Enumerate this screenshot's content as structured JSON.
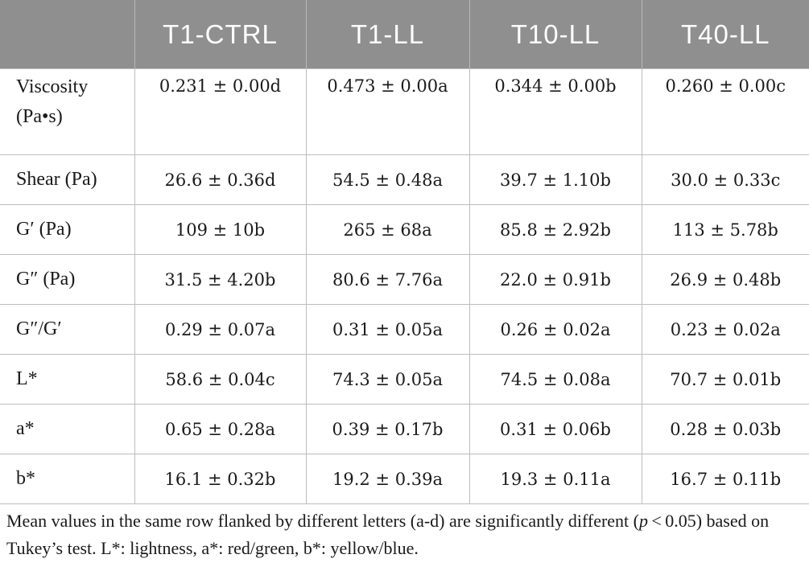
{
  "table": {
    "headers": [
      "",
      "T1-CTRL",
      "T1-LL",
      "T10-LL",
      "T40-LL"
    ],
    "rows": [
      {
        "label_line1": "Viscosity",
        "label_line2": "(Pa•s)",
        "values": [
          "0.231 ± 0.00d",
          "0.473 ± 0.00a",
          "0.344 ± 0.00b",
          "0.260 ± 0.00c"
        ]
      },
      {
        "label": "Shear (Pa)",
        "values": [
          "26.6 ± 0.36d",
          "54.5 ± 0.48a",
          "39.7 ± 1.10b",
          "30.0 ± 0.33c"
        ]
      },
      {
        "label": "G′ (Pa)",
        "values": [
          "109 ± 10b",
          "265 ± 68a",
          "85.8 ± 2.92b",
          "113 ± 5.78b"
        ]
      },
      {
        "label": "G″ (Pa)",
        "values": [
          "31.5 ± 4.20b",
          "80.6 ± 7.76a",
          "22.0 ± 0.91b",
          "26.9 ± 0.48b"
        ]
      },
      {
        "label": "G″/G′",
        "values": [
          "0.29 ± 0.07a",
          "0.31 ± 0.05a",
          "0.26 ± 0.02a",
          "0.23 ± 0.02a"
        ]
      },
      {
        "label": "L*",
        "values": [
          "58.6 ± 0.04c",
          "74.3 ± 0.05a",
          "74.5 ± 0.08a",
          "70.7 ± 0.01b"
        ]
      },
      {
        "label": "a*",
        "values": [
          "0.65 ± 0.28a",
          "0.39 ± 0.17b",
          "0.31 ± 0.06b",
          "0.28 ± 0.03b"
        ]
      },
      {
        "label": "b*",
        "values": [
          "16.1 ± 0.32b",
          "19.2 ± 0.39a",
          "19.3 ± 0.11a",
          "16.7 ± 0.11b"
        ]
      }
    ]
  },
  "footnote": {
    "part1": "Mean values in the same row flanked by different letters (a-d) are significantly different (",
    "p_symbol": "p",
    "part2": " < 0.05) based on Tukey’s test. L*: lightness, a*: red/green, b*: yellow/blue."
  },
  "colors": {
    "header_background": "#8f8f8f",
    "header_text": "#ffffff",
    "grid_lines": "#bdbdbd",
    "body_text": "#1a1a1a"
  }
}
